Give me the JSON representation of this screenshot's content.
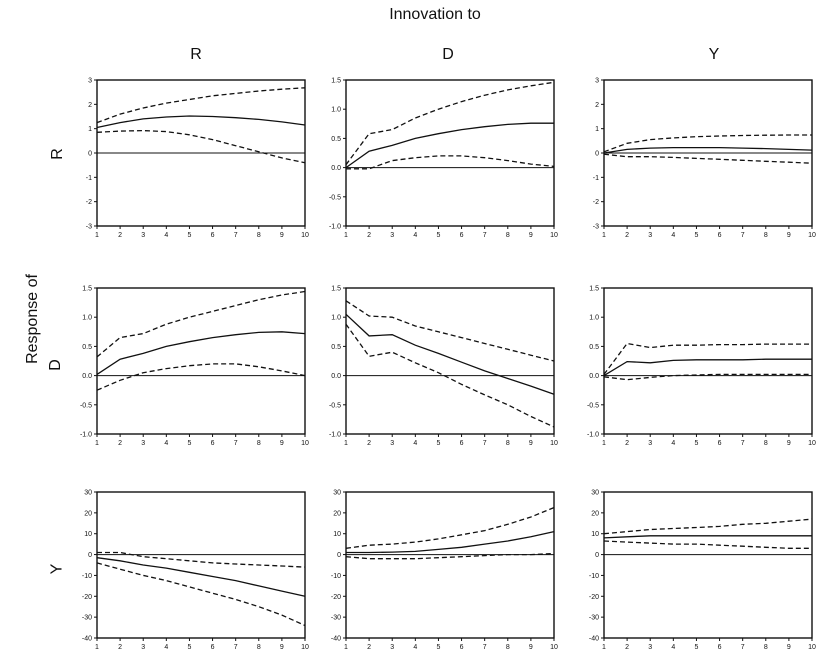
{
  "header": {
    "title": "Innovation to",
    "side_title": "Response of",
    "columns": [
      "R",
      "D",
      "Y"
    ],
    "rows": [
      "R",
      "D",
      "Y"
    ]
  },
  "chart_data": [
    {
      "type": "line",
      "row": "R",
      "col": "R",
      "x": [
        1,
        2,
        3,
        4,
        5,
        6,
        7,
        8,
        9,
        10
      ],
      "ylim": [
        -3,
        3
      ],
      "yticks": [
        -3,
        -2,
        -1,
        0,
        1,
        2,
        3
      ],
      "xticks": [
        "1",
        "2",
        "3",
        "4",
        "5",
        "6",
        "7",
        "8",
        "9",
        "10"
      ],
      "series": [
        {
          "style": "dashed",
          "values": [
            1.25,
            1.6,
            1.85,
            2.05,
            2.2,
            2.35,
            2.45,
            2.55,
            2.62,
            2.68
          ]
        },
        {
          "style": "solid",
          "values": [
            1.05,
            1.25,
            1.4,
            1.48,
            1.52,
            1.5,
            1.45,
            1.38,
            1.28,
            1.15
          ]
        },
        {
          "style": "dashed",
          "values": [
            0.85,
            0.9,
            0.92,
            0.88,
            0.75,
            0.55,
            0.3,
            0.05,
            -0.2,
            -0.4
          ]
        }
      ]
    },
    {
      "type": "line",
      "row": "R",
      "col": "D",
      "x": [
        1,
        2,
        3,
        4,
        5,
        6,
        7,
        8,
        9,
        10
      ],
      "ylim": [
        -1.0,
        1.5
      ],
      "yticks": [
        -1.0,
        -0.5,
        0.0,
        0.5,
        1.0,
        1.5
      ],
      "xticks": [
        "1",
        "2",
        "3",
        "4",
        "5",
        "6",
        "7",
        "8",
        "9",
        "10"
      ],
      "series": [
        {
          "style": "dashed",
          "values": [
            0.05,
            0.58,
            0.65,
            0.85,
            1.0,
            1.13,
            1.24,
            1.33,
            1.4,
            1.46
          ]
        },
        {
          "style": "solid",
          "values": [
            0.0,
            0.28,
            0.38,
            0.5,
            0.58,
            0.65,
            0.7,
            0.74,
            0.76,
            0.76
          ]
        },
        {
          "style": "dashed",
          "values": [
            -0.02,
            -0.02,
            0.12,
            0.17,
            0.2,
            0.2,
            0.17,
            0.12,
            0.06,
            0.02
          ]
        }
      ]
    },
    {
      "type": "line",
      "row": "R",
      "col": "Y",
      "x": [
        1,
        2,
        3,
        4,
        5,
        6,
        7,
        8,
        9,
        10
      ],
      "ylim": [
        -3,
        3
      ],
      "yticks": [
        -3,
        -2,
        -1,
        0,
        1,
        2,
        3
      ],
      "xticks": [
        "1",
        "2",
        "3",
        "4",
        "5",
        "6",
        "7",
        "8",
        "9",
        "10"
      ],
      "series": [
        {
          "style": "dashed",
          "values": [
            0.05,
            0.4,
            0.55,
            0.62,
            0.67,
            0.7,
            0.72,
            0.73,
            0.74,
            0.74
          ]
        },
        {
          "style": "solid",
          "values": [
            0.0,
            0.15,
            0.2,
            0.22,
            0.22,
            0.22,
            0.2,
            0.18,
            0.15,
            0.12
          ]
        },
        {
          "style": "dashed",
          "values": [
            -0.05,
            -0.15,
            -0.15,
            -0.18,
            -0.22,
            -0.26,
            -0.3,
            -0.34,
            -0.38,
            -0.42
          ]
        }
      ]
    },
    {
      "type": "line",
      "row": "D",
      "col": "R",
      "x": [
        1,
        2,
        3,
        4,
        5,
        6,
        7,
        8,
        9,
        10
      ],
      "ylim": [
        -1.0,
        1.5
      ],
      "yticks": [
        -1.0,
        -0.5,
        0.0,
        0.5,
        1.0,
        1.5
      ],
      "xticks": [
        "1",
        "2",
        "3",
        "4",
        "5",
        "6",
        "7",
        "8",
        "9",
        "10"
      ],
      "series": [
        {
          "style": "dashed",
          "values": [
            0.32,
            0.65,
            0.72,
            0.88,
            1.0,
            1.1,
            1.2,
            1.3,
            1.38,
            1.44
          ]
        },
        {
          "style": "solid",
          "values": [
            0.02,
            0.28,
            0.38,
            0.5,
            0.58,
            0.65,
            0.7,
            0.74,
            0.75,
            0.72
          ]
        },
        {
          "style": "dashed",
          "values": [
            -0.25,
            -0.08,
            0.05,
            0.12,
            0.17,
            0.2,
            0.2,
            0.15,
            0.08,
            0.0
          ]
        }
      ]
    },
    {
      "type": "line",
      "row": "D",
      "col": "D",
      "x": [
        1,
        2,
        3,
        4,
        5,
        6,
        7,
        8,
        9,
        10
      ],
      "ylim": [
        -1.0,
        1.5
      ],
      "yticks": [
        -1.0,
        -0.5,
        0.0,
        0.5,
        1.0,
        1.5
      ],
      "xticks": [
        "1",
        "2",
        "3",
        "4",
        "5",
        "6",
        "7",
        "8",
        "9",
        "10"
      ],
      "series": [
        {
          "style": "dashed",
          "values": [
            1.28,
            1.02,
            1.0,
            0.85,
            0.75,
            0.65,
            0.55,
            0.45,
            0.35,
            0.25
          ]
        },
        {
          "style": "solid",
          "values": [
            1.05,
            0.68,
            0.7,
            0.52,
            0.38,
            0.23,
            0.08,
            -0.05,
            -0.18,
            -0.32
          ]
        },
        {
          "style": "dashed",
          "values": [
            0.88,
            0.33,
            0.4,
            0.22,
            0.05,
            -0.15,
            -0.33,
            -0.5,
            -0.7,
            -0.88
          ]
        }
      ]
    },
    {
      "type": "line",
      "row": "D",
      "col": "Y",
      "x": [
        1,
        2,
        3,
        4,
        5,
        6,
        7,
        8,
        9,
        10
      ],
      "ylim": [
        -1.0,
        1.5
      ],
      "yticks": [
        -1.0,
        -0.5,
        0.0,
        0.5,
        1.0,
        1.5
      ],
      "xticks": [
        "1",
        "2",
        "3",
        "4",
        "5",
        "6",
        "7",
        "8",
        "9",
        "10"
      ],
      "series": [
        {
          "style": "dashed",
          "values": [
            0.02,
            0.55,
            0.48,
            0.52,
            0.52,
            0.53,
            0.53,
            0.54,
            0.54,
            0.54
          ]
        },
        {
          "style": "solid",
          "values": [
            0.0,
            0.24,
            0.22,
            0.26,
            0.27,
            0.27,
            0.27,
            0.28,
            0.28,
            0.28
          ]
        },
        {
          "style": "dashed",
          "values": [
            -0.02,
            -0.07,
            -0.03,
            0.0,
            0.01,
            0.02,
            0.02,
            0.02,
            0.02,
            0.02
          ]
        }
      ]
    },
    {
      "type": "line",
      "row": "Y",
      "col": "R",
      "x": [
        1,
        2,
        3,
        4,
        5,
        6,
        7,
        8,
        9,
        10
      ],
      "ylim": [
        -40,
        30
      ],
      "yticks": [
        -40,
        -30,
        -20,
        -10,
        0,
        10,
        20,
        30
      ],
      "xticks": [
        "1",
        "2",
        "3",
        "4",
        "5",
        "6",
        "7",
        "8",
        "9",
        "10"
      ],
      "series": [
        {
          "style": "dashed",
          "values": [
            1,
            1,
            -1,
            -2,
            -3,
            -4,
            -4.5,
            -5,
            -5.5,
            -6
          ]
        },
        {
          "style": "solid",
          "values": [
            -1.5,
            -3,
            -5,
            -6.5,
            -8.5,
            -10.5,
            -12.5,
            -15,
            -17.5,
            -20
          ]
        },
        {
          "style": "dashed",
          "values": [
            -4,
            -7,
            -10,
            -12.5,
            -15.5,
            -18.5,
            -21.5,
            -25,
            -29,
            -34
          ]
        }
      ]
    },
    {
      "type": "line",
      "row": "Y",
      "col": "D",
      "x": [
        1,
        2,
        3,
        4,
        5,
        6,
        7,
        8,
        9,
        10
      ],
      "ylim": [
        -40,
        30
      ],
      "yticks": [
        -40,
        -30,
        -20,
        -10,
        0,
        10,
        20,
        30
      ],
      "xticks": [
        "1",
        "2",
        "3",
        "4",
        "5",
        "6",
        "7",
        "8",
        "9",
        "10"
      ],
      "series": [
        {
          "style": "dashed",
          "values": [
            3,
            4.5,
            5,
            6,
            7.5,
            9.5,
            11.5,
            14.5,
            18,
            22.5
          ]
        },
        {
          "style": "solid",
          "values": [
            1,
            1,
            1.2,
            1.5,
            2.5,
            3.5,
            5,
            6.5,
            8.5,
            11
          ]
        },
        {
          "style": "dashed",
          "values": [
            -1,
            -2,
            -2,
            -2,
            -1.5,
            -1,
            -0.5,
            0,
            0,
            0.5
          ]
        }
      ]
    },
    {
      "type": "line",
      "row": "Y",
      "col": "Y",
      "x": [
        1,
        2,
        3,
        4,
        5,
        6,
        7,
        8,
        9,
        10
      ],
      "ylim": [
        -40,
        30
      ],
      "yticks": [
        -40,
        -30,
        -20,
        -10,
        0,
        10,
        20,
        30
      ],
      "xticks": [
        "1",
        "2",
        "3",
        "4",
        "5",
        "6",
        "7",
        "8",
        "9",
        "10"
      ],
      "series": [
        {
          "style": "dashed",
          "values": [
            10,
            11,
            12,
            12.5,
            13,
            13.5,
            14.5,
            15,
            16,
            17
          ]
        },
        {
          "style": "solid",
          "values": [
            8,
            8.5,
            9,
            9,
            9,
            9,
            9,
            9,
            9,
            9
          ]
        },
        {
          "style": "dashed",
          "values": [
            6.5,
            6,
            5.5,
            5,
            5,
            4.5,
            4,
            3.5,
            3,
            3
          ]
        }
      ]
    }
  ]
}
